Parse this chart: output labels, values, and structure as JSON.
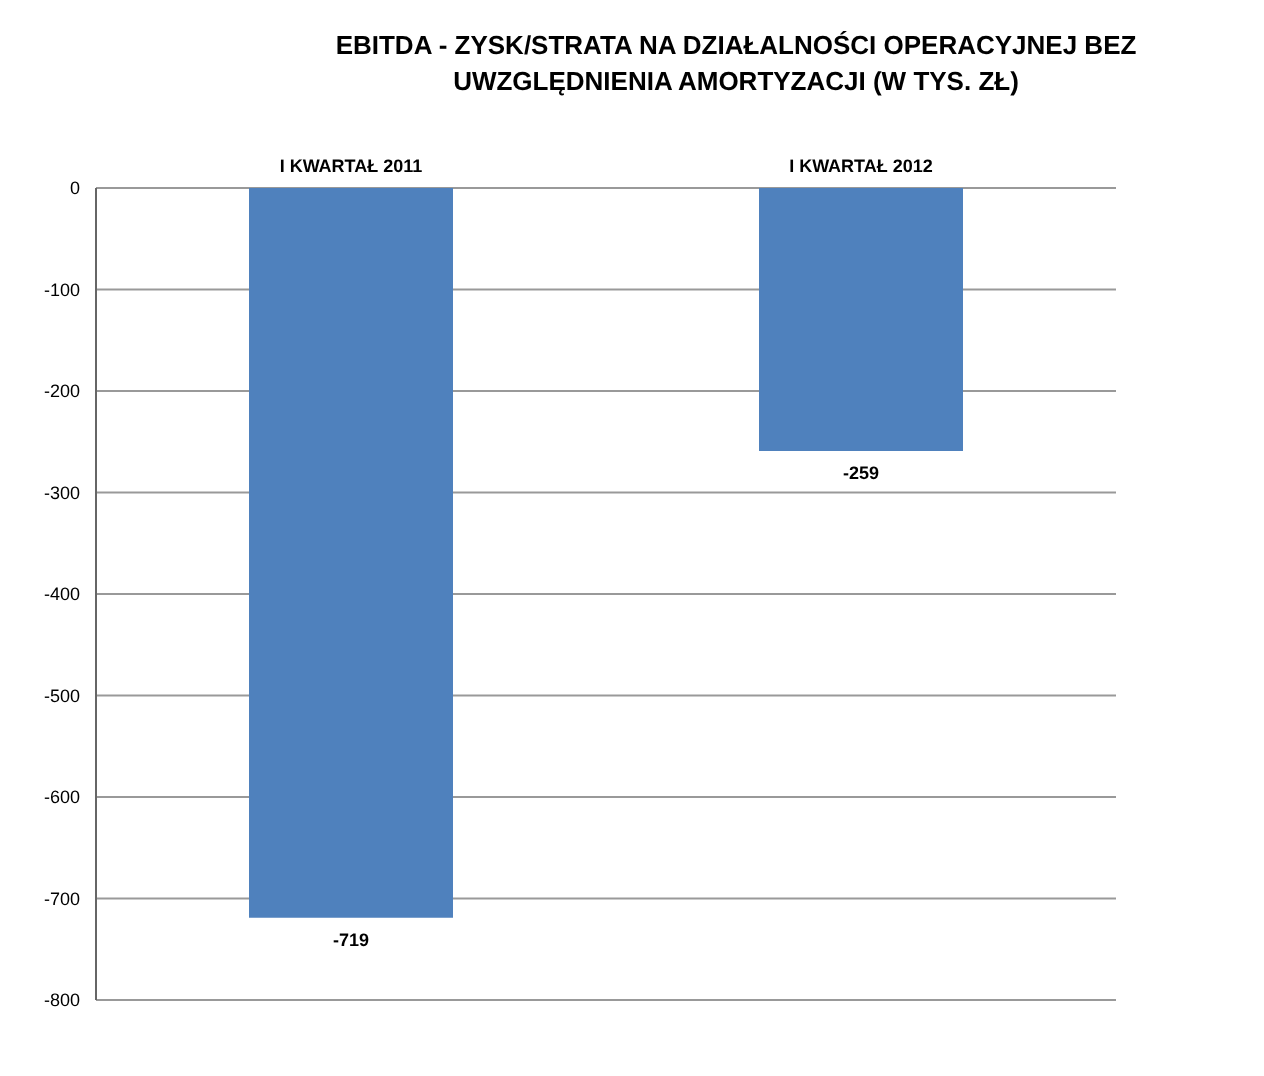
{
  "chart_data": {
    "type": "bar",
    "title": "EBITDA - ZYSK/STRATA NA DZIAŁALNOŚCI OPERACYJNEJ BEZ UWZGLĘDNIENIA AMORTYZACJI (W TYS. ZŁ)",
    "categories": [
      "I KWARTAŁ 2011",
      "I KWARTAŁ 2012"
    ],
    "values": [
      -719,
      -259
    ],
    "color": "#4f81bd",
    "ylim": [
      -800,
      0
    ],
    "yticks": [
      -800,
      -700,
      -600,
      -500,
      -400,
      -300,
      -200,
      -100,
      0
    ],
    "grid": "y",
    "data_labels": true
  }
}
